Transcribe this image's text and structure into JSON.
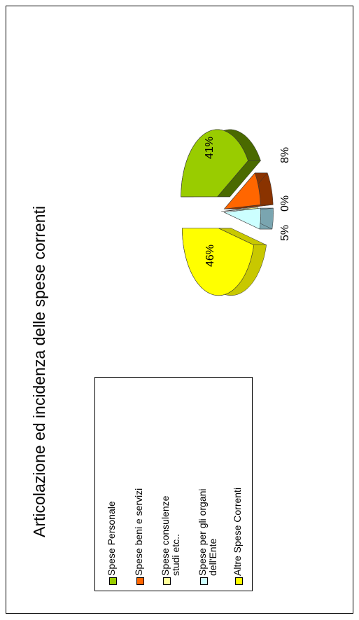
{
  "chart_data": {
    "type": "pie",
    "title": "Articolazione ed incidenza delle spese correnti",
    "categories": [
      "Spese Personale",
      "Spese  beni e servizi",
      "Spese  consulenze studi etc..",
      "Spese  per gli organi dell'Ente",
      "Altre Spese Correnti"
    ],
    "values": [
      41,
      8,
      0,
      5,
      46
    ],
    "value_labels": [
      "41%",
      "8%",
      "0%",
      "5%",
      "46%"
    ],
    "colors": [
      "#99cc00",
      "#ff6600",
      "#ffff99",
      "#ccffff",
      "#ffff00"
    ],
    "side_colors": [
      "#4a6a00",
      "#8a3300",
      "#999977",
      "#7aa5b0",
      "#c8c800"
    ],
    "legend_position": "left",
    "style": "3d-exploded"
  },
  "legend": {
    "items": [
      {
        "label": "Spese Personale",
        "color": "#99cc00"
      },
      {
        "label": "Spese  beni e servizi",
        "color": "#ff6600"
      },
      {
        "label": "Spese  consulenze studi etc..",
        "color": "#ffff99"
      },
      {
        "label": "Spese  per gli organi dell'Ente",
        "color": "#ccffff"
      },
      {
        "label": "Altre Spese Correnti",
        "color": "#ffff00"
      }
    ]
  }
}
